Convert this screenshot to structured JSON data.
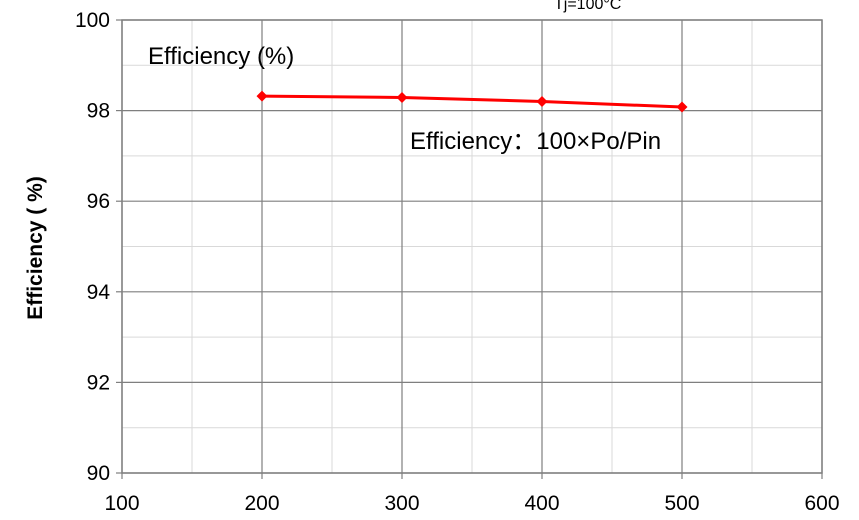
{
  "chart_data": {
    "type": "line",
    "title": "",
    "condition_label": "Tj=100°C",
    "xlabel": "",
    "ylabel": "Efficiency ( %)",
    "xlim": [
      100,
      600
    ],
    "ylim": [
      90,
      100
    ],
    "x_ticks": [
      100,
      200,
      300,
      400,
      500,
      600
    ],
    "y_ticks": [
      90,
      92,
      94,
      96,
      98,
      100
    ],
    "grid": true,
    "annotations": [
      {
        "text": "Efficiency (%)"
      },
      {
        "text": "Efficiency：100×Po/Pin"
      }
    ],
    "series": [
      {
        "color": "#ff0000",
        "marker": "diamond",
        "x": [
          200,
          300,
          400,
          500
        ],
        "y": [
          98.32,
          98.29,
          98.2,
          98.08
        ]
      }
    ]
  }
}
